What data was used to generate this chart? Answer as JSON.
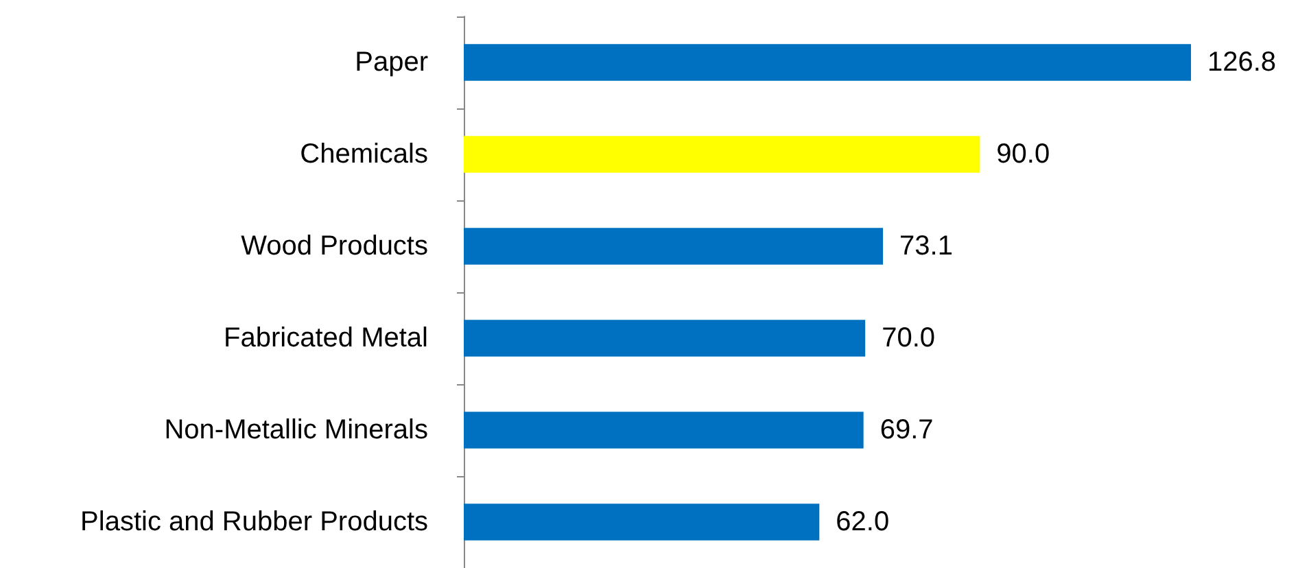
{
  "chart_data": {
    "type": "bar",
    "orientation": "horizontal",
    "categories": [
      "Paper",
      "Chemicals",
      "Wood Products",
      "Fabricated Metal",
      "Non-Metallic Minerals",
      "Plastic and Rubber Products"
    ],
    "values": [
      126.8,
      90,
      73.1,
      70,
      69.7,
      62
    ],
    "value_labels": [
      "126.8",
      "90.0",
      "73.1",
      "70.0",
      "69.7",
      "62.0"
    ],
    "colors": [
      "#0070c0",
      "#ffff00",
      "#0070c0",
      "#0070c0",
      "#0070c0",
      "#0070c0"
    ]
  }
}
